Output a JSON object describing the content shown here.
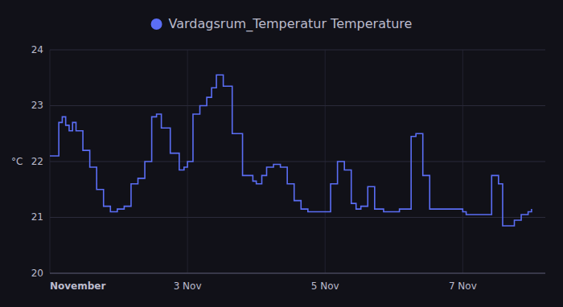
{
  "chart_data": {
    "type": "step",
    "title": "Vardagsrum_Temperatur Temperature",
    "ylabel": "°C",
    "grid": true,
    "xlim": [
      0,
      7.2
    ],
    "xticks": [
      {
        "value": 0,
        "label": "November"
      },
      {
        "value": 2,
        "label": "3 Nov"
      },
      {
        "value": 4,
        "label": "5 Nov"
      },
      {
        "value": 6,
        "label": "7 Nov"
      }
    ],
    "ylim": [
      20,
      24
    ],
    "yticks": [
      20,
      21,
      22,
      23,
      24
    ],
    "x": [
      0.0,
      0.08,
      0.13,
      0.18,
      0.23,
      0.28,
      0.33,
      0.38,
      0.48,
      0.58,
      0.68,
      0.78,
      0.88,
      0.98,
      1.08,
      1.18,
      1.28,
      1.38,
      1.48,
      1.55,
      1.62,
      1.75,
      1.88,
      1.95,
      2.0,
      2.08,
      2.18,
      2.28,
      2.35,
      2.42,
      2.52,
      2.65,
      2.8,
      2.95,
      3.0,
      3.08,
      3.15,
      3.25,
      3.35,
      3.45,
      3.55,
      3.65,
      3.75,
      3.88,
      4.0,
      4.08,
      4.18,
      4.28,
      4.38,
      4.45,
      4.52,
      4.62,
      4.72,
      4.85,
      4.95,
      5.0,
      5.08,
      5.15,
      5.25,
      5.32,
      5.42,
      5.52,
      5.65,
      5.78,
      5.9,
      6.0,
      6.05,
      6.12,
      6.2,
      6.32,
      6.42,
      6.52,
      6.58,
      6.65,
      6.75,
      6.85,
      6.95,
      7.0
    ],
    "series": [
      {
        "color": "#5b6ef5",
        "values": [
          22.1,
          22.1,
          22.7,
          22.8,
          22.65,
          22.55,
          22.7,
          22.55,
          22.2,
          21.9,
          21.5,
          21.2,
          21.1,
          21.15,
          21.2,
          21.6,
          21.7,
          22.0,
          22.8,
          22.85,
          22.6,
          22.15,
          21.85,
          21.9,
          22.0,
          22.85,
          23.0,
          23.15,
          23.32,
          23.55,
          23.35,
          22.5,
          21.75,
          21.65,
          21.6,
          21.75,
          21.9,
          21.95,
          21.9,
          21.6,
          21.3,
          21.15,
          21.1,
          21.1,
          21.1,
          21.6,
          22.0,
          21.85,
          21.25,
          21.15,
          21.2,
          21.55,
          21.15,
          21.1,
          21.1,
          21.1,
          21.15,
          21.15,
          22.45,
          22.5,
          21.75,
          21.15,
          21.15,
          21.15,
          21.15,
          21.1,
          21.05,
          21.05,
          21.05,
          21.05,
          21.75,
          21.6,
          20.85,
          20.85,
          20.95,
          21.05,
          21.1,
          21.15
        ]
      }
    ]
  }
}
